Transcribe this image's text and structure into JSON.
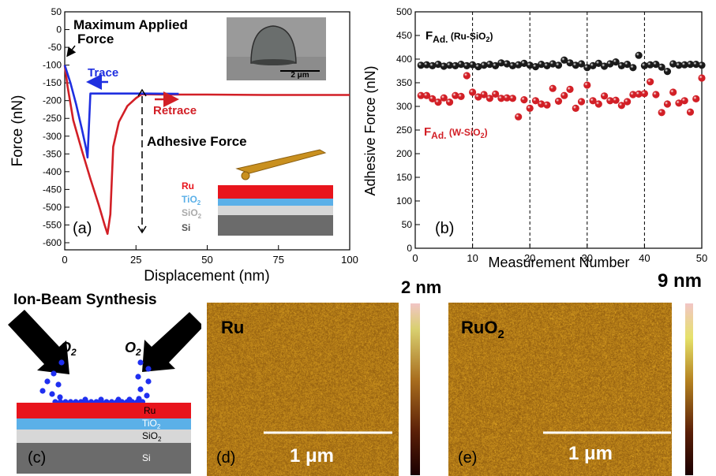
{
  "chart_data": [
    {
      "type": "line",
      "panel_label": "(a)",
      "xlabel": "Displacement (nm)",
      "ylabel": "Force (nN)",
      "xlim": [
        0,
        100
      ],
      "ylim": [
        -620,
        50
      ],
      "xticks": [
        0,
        25,
        50,
        75,
        100
      ],
      "yticks": [
        50,
        0,
        -50,
        -100,
        -150,
        -200,
        -250,
        -300,
        -350,
        -400,
        -450,
        -500,
        -550,
        -600
      ],
      "series": [
        {
          "name": "Trace",
          "color": "#1f2fe0",
          "x": [
            0,
            2,
            4,
            6,
            7.5,
            8,
            9,
            27,
            40
          ],
          "y": [
            -100,
            -150,
            -210,
            -280,
            -335,
            -360,
            -180,
            -180,
            -181
          ]
        },
        {
          "name": "Retrace",
          "color": "#d21f26",
          "x": [
            0,
            1,
            3,
            6,
            9,
            12,
            14,
            15,
            16,
            17,
            19,
            22,
            25,
            27,
            35,
            50,
            70,
            100
          ],
          "y": [
            -100,
            -160,
            -255,
            -340,
            -420,
            -495,
            -550,
            -575,
            -520,
            -330,
            -260,
            -215,
            -193,
            -182,
            -183,
            -183,
            -184,
            -184
          ]
        }
      ],
      "annotations": {
        "max_force": "Maximum Applied Force",
        "trace": "Trace",
        "retrace": "Retrace",
        "adhesive": "Adhesive Force"
      },
      "inset_stack": [
        "Ru",
        "TiO2",
        "SiO2",
        "Si"
      ],
      "scale_bar": "2 μm"
    },
    {
      "type": "scatter",
      "panel_label": "(b)",
      "xlabel": "Measurement Number",
      "ylabel": "Adhesive Force (nN)",
      "xlim": [
        0,
        50
      ],
      "ylim": [
        0,
        500
      ],
      "xticks": [
        0,
        10,
        20,
        30,
        40,
        50
      ],
      "yticks": [
        0,
        50,
        100,
        150,
        200,
        250,
        300,
        350,
        400,
        450,
        500
      ],
      "vlines": [
        10,
        20,
        30,
        40
      ],
      "series": [
        {
          "name": "FAd. (Ru-SiO2)",
          "color": "#1a1a1a",
          "x": [
            1,
            2,
            3,
            4,
            5,
            6,
            7,
            8,
            9,
            10,
            11,
            12,
            13,
            14,
            15,
            16,
            17,
            18,
            19,
            20,
            21,
            22,
            23,
            24,
            25,
            26,
            27,
            28,
            29,
            30,
            31,
            32,
            33,
            34,
            35,
            36,
            37,
            38,
            39,
            40,
            41,
            42,
            43,
            44,
            45,
            46,
            47,
            48,
            49,
            50
          ],
          "y": [
            387,
            388,
            386,
            389,
            385,
            387,
            386,
            389,
            386,
            388,
            384,
            387,
            389,
            386,
            392,
            390,
            386,
            388,
            391,
            387,
            384,
            389,
            386,
            390,
            387,
            398,
            392,
            387,
            390,
            382,
            386,
            391,
            385,
            390,
            394,
            386,
            389,
            382,
            408,
            386,
            388,
            389,
            383,
            374,
            390,
            387,
            388,
            389,
            389,
            387
          ]
        },
        {
          "name": "FAd. (W-SiO2)",
          "color": "#d21f26",
          "x": [
            1,
            2,
            3,
            4,
            5,
            6,
            7,
            8,
            9,
            10,
            11,
            12,
            13,
            14,
            15,
            16,
            17,
            18,
            19,
            20,
            21,
            22,
            23,
            24,
            25,
            26,
            27,
            28,
            29,
            30,
            31,
            32,
            33,
            34,
            35,
            36,
            37,
            38,
            39,
            40,
            41,
            42,
            43,
            44,
            45,
            46,
            47,
            48,
            49,
            50
          ],
          "y": [
            323,
            323,
            316,
            309,
            318,
            309,
            323,
            321,
            365,
            330,
            320,
            325,
            317,
            326,
            317,
            318,
            317,
            278,
            314,
            296,
            312,
            305,
            303,
            338,
            311,
            323,
            336,
            296,
            310,
            345,
            312,
            305,
            322,
            312,
            313,
            302,
            310,
            325,
            326,
            327,
            352,
            325,
            287,
            305,
            330,
            307,
            312,
            288,
            316,
            360
          ]
        }
      ],
      "legend_labels": [
        {
          "main": "F",
          "sub": "Ad.",
          "rest": " (Ru-SiO",
          "sub2": "2",
          "end": ")"
        },
        {
          "main": "F",
          "sub": "Ad.",
          "rest": " (W-SiO",
          "sub2": "2",
          "end": ")"
        }
      ]
    }
  ],
  "panel_c": {
    "title": "Ion-Beam Synthesis",
    "label": "(c)",
    "gas_left": "O",
    "gas_right": "O",
    "gas_sub": "2",
    "layers": [
      {
        "name": "Ru",
        "color": "#e8141c"
      },
      {
        "name": "TiO2",
        "color": "#5bb0e8"
      },
      {
        "name": "SiO2",
        "color": "#d7d7d7"
      },
      {
        "name": "Si",
        "color": "#6b6b6b"
      }
    ]
  },
  "panel_d": {
    "label": "(d)",
    "material": "Ru",
    "scale_bar": "1 μm",
    "z_range": "2 nm"
  },
  "panel_e": {
    "label": "(e)",
    "material": "RuO",
    "material_sub": "2",
    "scale_bar": "1 μm",
    "z_range": "9 nm"
  }
}
